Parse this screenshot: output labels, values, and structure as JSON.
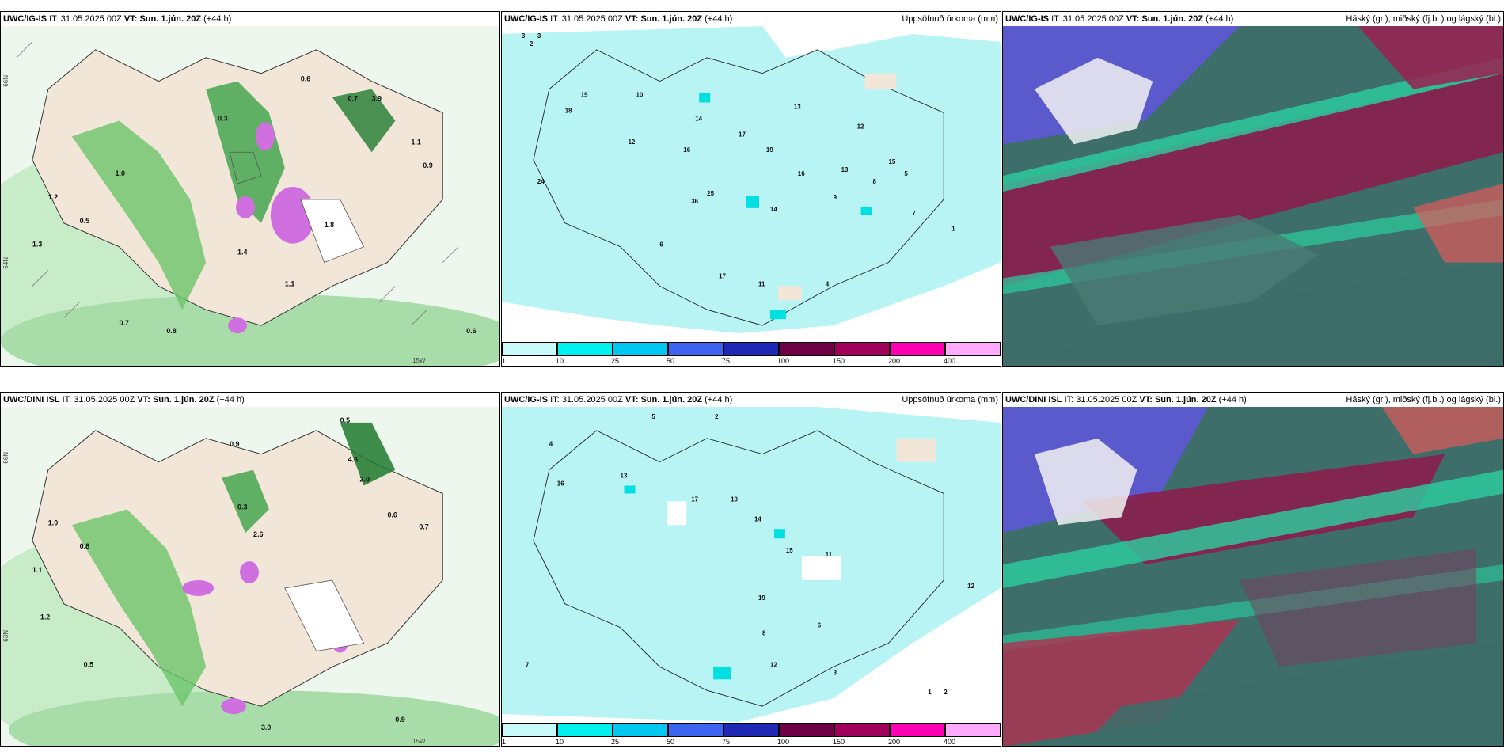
{
  "rows": [
    {
      "model": "UWC/IG-IS",
      "it_label": "IT:",
      "it_value": "31.05.2025 00Z",
      "vt_label": "VT:",
      "vt_value": "Sun. 1.jún. 20Z",
      "lead": "(+44 h)"
    },
    {
      "model": "UWC/DINI ISL",
      "it_label": "IT:",
      "it_value": "31.05.2025 00Z",
      "vt_label": "VT:",
      "vt_value": "Sun. 1.jún. 20Z",
      "lead": "(+44 h)"
    }
  ],
  "panel_titles": {
    "precip": "Uppsöfnuð úrkoma (mm)",
    "cloud": "Háský (gr.), miðský (fj.bl.) og lágský (bl.)"
  },
  "lat_labels": [
    "66N",
    "64N",
    "63N"
  ],
  "lon_label": "15W",
  "colorbar": {
    "labels": [
      "1",
      "10",
      "25",
      "50",
      "75",
      "100",
      "150",
      "200",
      "400"
    ],
    "colors": [
      "#c8fafa",
      "#00f0f0",
      "#00c8f0",
      "#3c64f0",
      "#1e28b4",
      "#6e0046",
      "#a0005a",
      "#ff00b4",
      "#ffaaff"
    ]
  },
  "precip_labels_top": [
    "3",
    "2",
    "3",
    "15",
    "18",
    "10",
    "12",
    "14",
    "16",
    "17",
    "19",
    "13",
    "24",
    "25",
    "36",
    "17",
    "14",
    "11",
    "9",
    "12",
    "13",
    "16",
    "15",
    "8",
    "5",
    "6",
    "7",
    "4",
    "1"
  ],
  "precip_labels_bottom": [
    "5",
    "2",
    "4",
    "16",
    "13",
    "17",
    "10",
    "14",
    "15",
    "19",
    "12",
    "11",
    "8",
    "6",
    "7",
    "3",
    "2",
    "1",
    "12"
  ],
  "rain_labels_top": [
    "0.6",
    "0.7",
    "3.9",
    "1.1",
    "0.9",
    "1.2",
    "0.5",
    "0.8",
    "1.3",
    "0.3",
    "1.0",
    "1.8",
    "0.6",
    "0.7",
    "1.4",
    "1.1"
  ],
  "rain_labels_bottom": [
    "0.5",
    "0.9",
    "4.6",
    "2.0",
    "0.6",
    "1.0",
    "0.8",
    "0.7",
    "1.1",
    "0.3",
    "2.6",
    "0.5",
    "1.2",
    "3.0",
    "0.9"
  ]
}
